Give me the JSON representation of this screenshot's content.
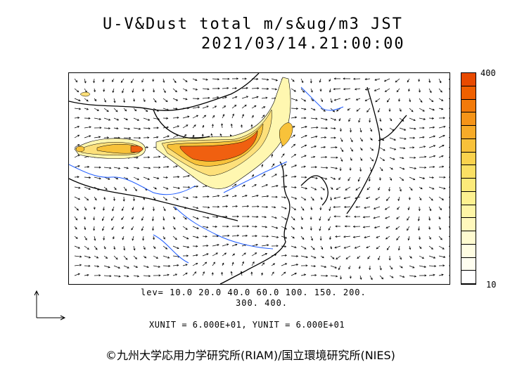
{
  "title": {
    "line1": "U-V&Dust total m/s&ug/m3 JST",
    "line2": "2021/03/14.21:00:00"
  },
  "colorbar": {
    "max_label": "400",
    "min_label": "10",
    "colors_top_to_bottom": [
      "#e84a00",
      "#f06000",
      "#f27a0a",
      "#f59418",
      "#f7ab28",
      "#f8c13a",
      "#fad24d",
      "#fbe064",
      "#fcea7a",
      "#fdf190",
      "#fef5a6",
      "#fff8bc",
      "#fffbd0",
      "#fffde2",
      "#fffef0",
      "#ffffff"
    ]
  },
  "map": {
    "land_lines_color": "#000000",
    "rivers_color": "#1e5bff",
    "dust_colors": {
      "low": "#fff7b0",
      "mid": "#f8c23a",
      "high": "#f06010",
      "peak": "#e84a00"
    }
  },
  "levels": {
    "line1": "lev= 10.0 20.0 40.0 60.0 100. 150. 200.",
    "line2": "300. 400."
  },
  "units": "XUNIT = 6.000E+01, YUNIT = 6.000E+01",
  "copyright": "©九州大学応用力学研究所(RIAM)/国立環境研究所(NIES)",
  "reference_vector_icon": "axes-reference-icon"
}
